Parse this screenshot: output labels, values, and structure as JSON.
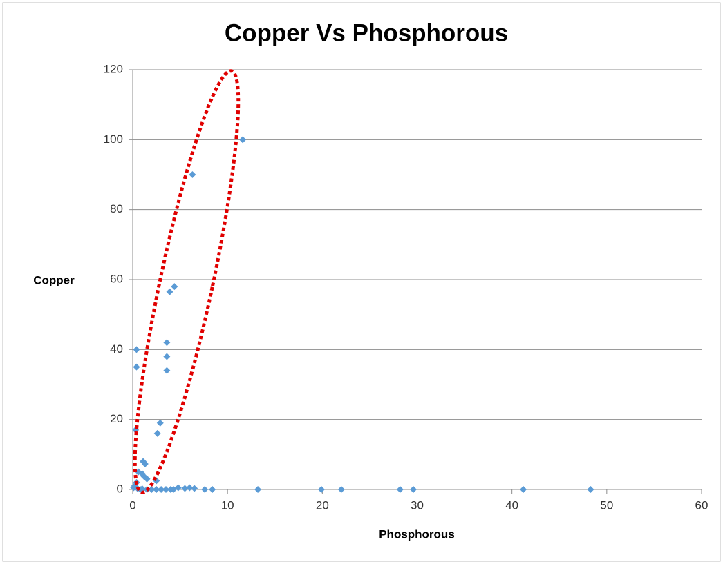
{
  "chart_data": {
    "type": "scatter",
    "title": "Copper Vs Phosphorous",
    "x_label": "Phosphorous",
    "y_label": "Copper",
    "color": "#5b9bd5",
    "series": [
      {
        "name": "Copper",
        "color": "#5b9bd5",
        "x": [
          11.6,
          6.3,
          4.4,
          3.9,
          3.6,
          3.6,
          3.6,
          0.4,
          0.4,
          0.3,
          2.9,
          2.6,
          1.1,
          1.3,
          1.0,
          1.2,
          1.5,
          0.6,
          0.4,
          2.5,
          0.1,
          0.2,
          0.5,
          0.8,
          1.0,
          1.5,
          2.0,
          2.5,
          3.0,
          3.5,
          4.0,
          4.3,
          4.8,
          5.5,
          6.0,
          6.5,
          7.6,
          8.4,
          13.2,
          19.9,
          22.0,
          28.2,
          29.6,
          41.2,
          48.3
        ],
        "values": [
          100,
          90,
          58,
          56.5,
          42,
          38,
          34,
          40,
          35,
          17,
          19,
          16,
          8,
          7.3,
          4.5,
          3.7,
          3,
          5,
          2,
          2.5,
          0.5,
          1,
          0.3,
          0,
          0.2,
          0,
          0,
          0,
          0,
          0,
          0,
          0,
          0.5,
          0.3,
          0.5,
          0.3,
          0,
          0,
          0,
          0,
          0,
          0,
          0,
          0,
          0
        ]
      }
    ],
    "xlim": [
      0,
      60
    ],
    "xticks": [
      0,
      10,
      20,
      30,
      40,
      50,
      60
    ],
    "ylim": [
      0,
      120
    ],
    "yticks": [
      0,
      20,
      40,
      60,
      80,
      100,
      120
    ],
    "grid": true
  }
}
